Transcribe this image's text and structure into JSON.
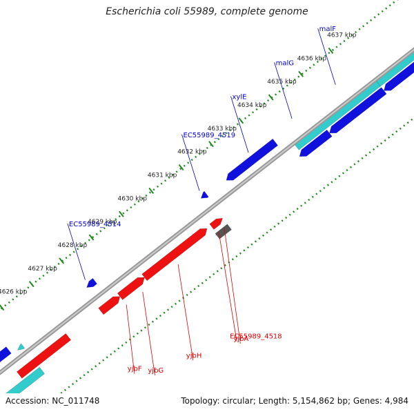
{
  "title": "Escherichia coli 55989, complete genome",
  "footer": {
    "accession": "Accession: NC_011748",
    "stats": "Topology: circular; Length: 5,154,862 bp; Genes: 4,984"
  },
  "colors": {
    "backbone": "#999999",
    "forward_genes": "#ee1111",
    "reverse_genes": "#1111dd",
    "cyan_genes": "#33cccc",
    "tick_marks": "#228822",
    "forward_label": "#dd0000",
    "reverse_label": "#0000cc"
  },
  "ticks": [
    "4626 kbp",
    "4627 kbp",
    "4628 kbp",
    "4629 kbp",
    "4630 kbp",
    "4631 kbp",
    "4632 kbp",
    "4633 kbp",
    "4634 kbp",
    "4635 kbp",
    "4636 kbp",
    "4637 kbp"
  ],
  "forward_labels": [
    "yjbF",
    "yjbG",
    "yjbH",
    "EC55989_4518",
    "yjbA"
  ],
  "reverse_labels": [
    "EC55989_4514",
    "EC55989_4519",
    "xylE",
    "malG",
    "malF"
  ]
}
